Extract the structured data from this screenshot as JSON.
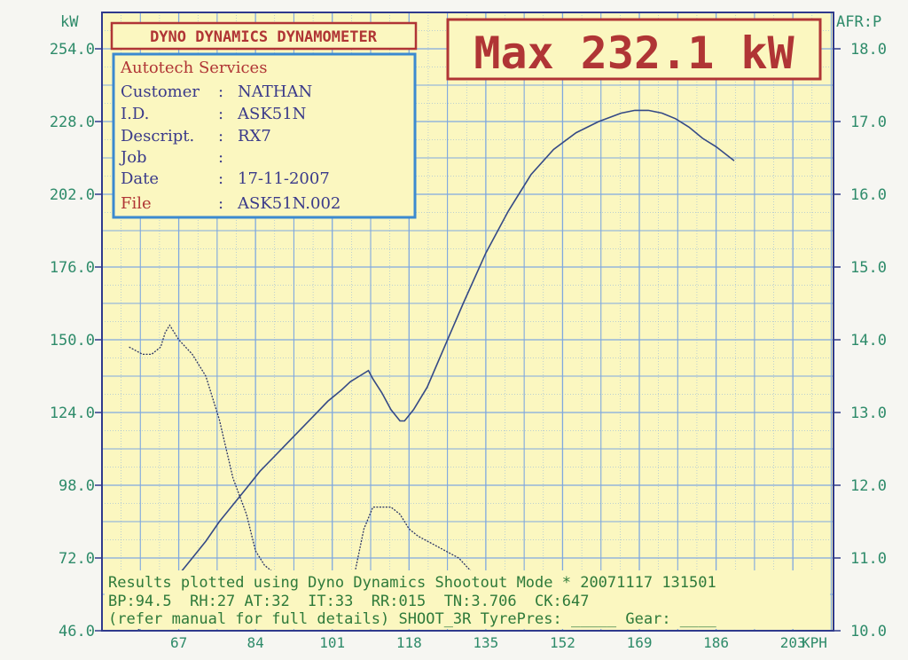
{
  "header": {
    "title": "DYNO DYNAMICS DYNAMOMETER",
    "max_label": "Max 232.1 kW"
  },
  "info_box": {
    "company": "Autotech Services",
    "rows": [
      {
        "label": "Customer",
        "sep": ":",
        "value": "NATHAN"
      },
      {
        "label": "I.D.",
        "sep": ":",
        "value": "ASK51N"
      },
      {
        "label": "Descript.",
        "sep": ":",
        "value": "RX7"
      },
      {
        "label": "Job",
        "sep": ":",
        "value": ""
      },
      {
        "label": "Date",
        "sep": ":",
        "value": "17-11-2007"
      },
      {
        "label": "File",
        "sep": ":",
        "value": "ASK51N.002"
      }
    ]
  },
  "footer": {
    "line1": "Results plotted using Dyno Dynamics Shootout Mode * 20071117 131501",
    "line2": "BP:94.5  RH:27 AT:32  IT:33  RR:015  TN:3.706  CK:647",
    "line3": "(refer manual for full details) SHOOT_3R TyrePres: _____ Gear: ____"
  },
  "colors": {
    "grid": "#7fa8df",
    "paper": "#fbf7c0",
    "frame": "#2f3a8c",
    "accent_red": "#b03535",
    "accent_blue": "#3b8ad0",
    "tick_green": "#2e8b6a",
    "power_line": "#354a86",
    "afr_line": "#2a3466"
  },
  "chart_data": {
    "type": "line",
    "ylabel": "kW",
    "y2label": "AFR:P",
    "x_unit": "KPH",
    "xlim": [
      50,
      212
    ],
    "ylim": [
      46,
      267
    ],
    "y2lim": [
      10.0,
      18.5
    ],
    "x_ticks": [
      67,
      84,
      101,
      118,
      135,
      152,
      169,
      186,
      203
    ],
    "y_ticks": [
      "46.0",
      "72.0",
      "98.0",
      "124.0",
      "150.0",
      "176.0",
      "202.0",
      "228.0",
      "254.0"
    ],
    "y2_ticks": [
      "10.0",
      "11.0",
      "12.0",
      "13.0",
      "14.0",
      "15.0",
      "16.0",
      "17.0",
      "18.0"
    ],
    "grid": true,
    "series": [
      {
        "x": [
          58,
          60,
          62,
          64,
          67,
          70,
          73,
          76,
          79,
          82,
          85,
          88,
          91,
          94,
          97,
          100,
          103,
          105,
          107,
          109,
          110,
          112,
          114,
          116,
          117,
          119,
          122,
          126,
          130,
          135,
          140,
          145,
          150,
          155,
          160,
          165,
          168,
          171,
          174,
          177,
          180,
          183,
          186,
          190
        ],
        "y": [
          46,
          52,
          58,
          61,
          66,
          72,
          78,
          85,
          91,
          97,
          103,
          108,
          113,
          118,
          123,
          128,
          132,
          135,
          137,
          139,
          136,
          131,
          125,
          121,
          121,
          125,
          133,
          148,
          163,
          181,
          196,
          209,
          218,
          224,
          228,
          231,
          232,
          232,
          231,
          229,
          226,
          222,
          219,
          214
        ]
      },
      {
        "x": [
          56,
          59,
          61,
          63,
          64,
          65,
          67,
          70,
          73,
          76,
          79,
          82,
          84,
          86,
          88,
          90,
          92,
          95,
          98,
          100,
          103,
          105,
          106,
          108,
          110,
          112,
          114,
          116,
          118,
          120,
          123,
          126,
          129,
          132,
          135,
          138,
          141,
          144,
          147,
          150,
          153,
          156,
          160,
          165,
          170,
          175,
          180,
          185,
          190
        ],
        "y": [
          13.9,
          13.8,
          13.8,
          13.9,
          14.1,
          14.2,
          14.0,
          13.8,
          13.5,
          12.9,
          12.1,
          11.6,
          11.1,
          10.9,
          10.8,
          10.7,
          10.6,
          10.5,
          10.5,
          10.5,
          10.5,
          10.6,
          10.8,
          11.4,
          11.7,
          11.7,
          11.7,
          11.6,
          11.4,
          11.3,
          11.2,
          11.1,
          11.0,
          10.8,
          10.6,
          10.4,
          10.4,
          10.5,
          10.5,
          10.5,
          10.5,
          10.5,
          10.5,
          10.5,
          10.4,
          10.5,
          10.4,
          10.4,
          10.5
        ]
      }
    ]
  }
}
